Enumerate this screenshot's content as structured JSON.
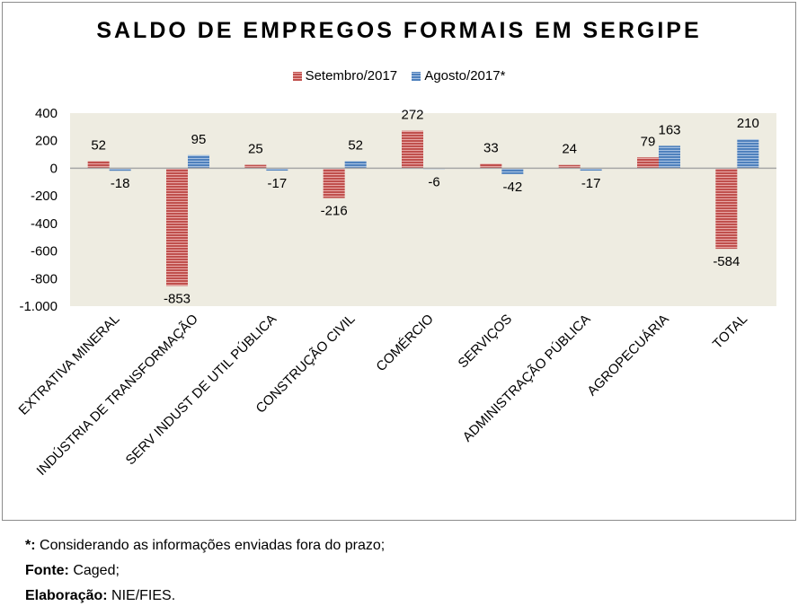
{
  "colors": {
    "plot_bg": "#eeece1",
    "series_sep": "#c0504d",
    "series_sep_light": "#e8a9a7",
    "series_ago": "#4f81bd",
    "series_ago_light": "#a9c3e3",
    "zero_line": "#a6a6a6"
  },
  "chart_data": {
    "type": "bar",
    "title": "SALDO DE EMPREGOS FORMAIS EM SERGIPE",
    "categories": [
      "EXTRATIVA MINERAL",
      "INDÚSTRIA DE TRANSFORMAÇÃO",
      "SERV INDUST DE UTIL PÚBLICA",
      "CONSTRUÇÃO CIVIL",
      "COMÉRCIO",
      "SERVIÇOS",
      "ADMINISTRAÇÃO PÚBLICA",
      "AGROPECUÁRIA",
      "TOTAL"
    ],
    "series": [
      {
        "name": "Setembro/2017",
        "values": [
          52,
          -853,
          25,
          -216,
          272,
          33,
          24,
          79,
          -584
        ]
      },
      {
        "name": "Agosto/2017*",
        "values": [
          -18,
          95,
          -17,
          52,
          -6,
          -42,
          -17,
          163,
          210
        ]
      }
    ],
    "ylim": [
      -1000,
      400
    ],
    "yticks": [
      400,
      200,
      0,
      -200,
      -400,
      -600,
      -800,
      -1000
    ],
    "ytick_labels": [
      "400",
      "200",
      "0",
      "-200",
      "-400",
      "-600",
      "-800",
      "-1.000"
    ],
    "xlabel": "",
    "ylabel": "",
    "legend_position": "top-center"
  },
  "footnotes": {
    "asterisk_marker": "*:",
    "asterisk_text": " Considerando as informações enviadas fora do prazo;",
    "fonte_label": "Fonte:",
    "fonte_text": " Caged;",
    "elaboracao_label": "Elaboração:",
    "elaboracao_text": " NIE/FIES."
  }
}
